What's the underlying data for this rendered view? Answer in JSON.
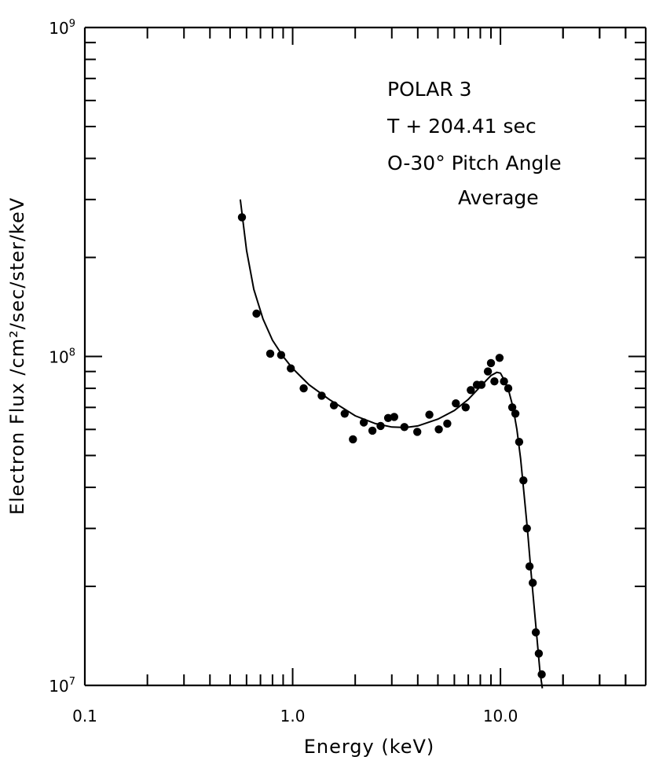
{
  "chart_data": {
    "type": "scatter",
    "title": "",
    "xlabel": "Energy (keV)",
    "ylabel": "Electron Flux /cm²/sec/ster/keV",
    "xscale": "log",
    "yscale": "log",
    "xlim": [
      0.1,
      50
    ],
    "ylim": [
      10000000,
      1000000000
    ],
    "grid": false,
    "x_tick_labels": [
      {
        "value": 0.1,
        "label": "0.1"
      },
      {
        "value": 1.0,
        "label": "1.0"
      },
      {
        "value": 10.0,
        "label": "10.0"
      }
    ],
    "y_tick_labels": [
      {
        "value": 10000000,
        "base": "10",
        "exp": "7"
      },
      {
        "value": 100000000,
        "base": "10",
        "exp": "8"
      },
      {
        "value": 1000000000,
        "base": "10",
        "exp": "9"
      }
    ],
    "annotations": [
      "POLAR 3",
      "T + 204.41 sec",
      "O-30° Pitch Angle",
      "Average"
    ],
    "points": [
      [
        0.57,
        265000000
      ],
      [
        0.67,
        135000000
      ],
      [
        0.78,
        102000000
      ],
      [
        0.88,
        101000000
      ],
      [
        0.98,
        92000000
      ],
      [
        1.13,
        80000000
      ],
      [
        1.38,
        76000000
      ],
      [
        1.58,
        71000000
      ],
      [
        1.78,
        67000000
      ],
      [
        1.95,
        56000000
      ],
      [
        2.2,
        63000000
      ],
      [
        2.42,
        59500000
      ],
      [
        2.65,
        61500000
      ],
      [
        2.88,
        65000000
      ],
      [
        3.08,
        65500000
      ],
      [
        3.45,
        61000000
      ],
      [
        3.98,
        59000000
      ],
      [
        4.55,
        66500000
      ],
      [
        5.05,
        60000000
      ],
      [
        5.55,
        62500000
      ],
      [
        6.1,
        72000000
      ],
      [
        6.8,
        70000000
      ],
      [
        7.2,
        79000000
      ],
      [
        7.7,
        82000000
      ],
      [
        8.1,
        82000000
      ],
      [
        8.7,
        90000000
      ],
      [
        9.0,
        95500000
      ],
      [
        9.35,
        84000000
      ],
      [
        9.9,
        99000000
      ],
      [
        10.4,
        84000000
      ],
      [
        10.9,
        80000000
      ],
      [
        11.4,
        70000000
      ],
      [
        11.8,
        67000000
      ],
      [
        12.3,
        55000000
      ],
      [
        12.9,
        42000000
      ],
      [
        13.4,
        30000000
      ],
      [
        13.8,
        23000000
      ],
      [
        14.3,
        20500000
      ],
      [
        14.8,
        14500000
      ],
      [
        15.3,
        12500000
      ],
      [
        15.8,
        10800000
      ]
    ],
    "fit_curve": [
      [
        0.56,
        300000000
      ],
      [
        0.6,
        210000000
      ],
      [
        0.65,
        160000000
      ],
      [
        0.72,
        130000000
      ],
      [
        0.8,
        112000000
      ],
      [
        0.9,
        100000000
      ],
      [
        1.0,
        92000000
      ],
      [
        1.2,
        82000000
      ],
      [
        1.5,
        74000000
      ],
      [
        2.0,
        66000000
      ],
      [
        2.5,
        62500000
      ],
      [
        3.0,
        61000000
      ],
      [
        3.5,
        60800000
      ],
      [
        4.0,
        61500000
      ],
      [
        5.0,
        64500000
      ],
      [
        6.0,
        68500000
      ],
      [
        7.0,
        74000000
      ],
      [
        8.0,
        81000000
      ],
      [
        9.0,
        87500000
      ],
      [
        9.6,
        89500000
      ],
      [
        10.0,
        89000000
      ],
      [
        10.5,
        84000000
      ],
      [
        11.0,
        78000000
      ],
      [
        11.5,
        70000000
      ],
      [
        12.0,
        60000000
      ],
      [
        12.5,
        49000000
      ],
      [
        13.0,
        38000000
      ],
      [
        13.5,
        29500000
      ],
      [
        14.0,
        22500000
      ],
      [
        14.5,
        17500000
      ],
      [
        15.0,
        13800000
      ],
      [
        15.5,
        11000000
      ],
      [
        15.9,
        9800000
      ]
    ]
  }
}
